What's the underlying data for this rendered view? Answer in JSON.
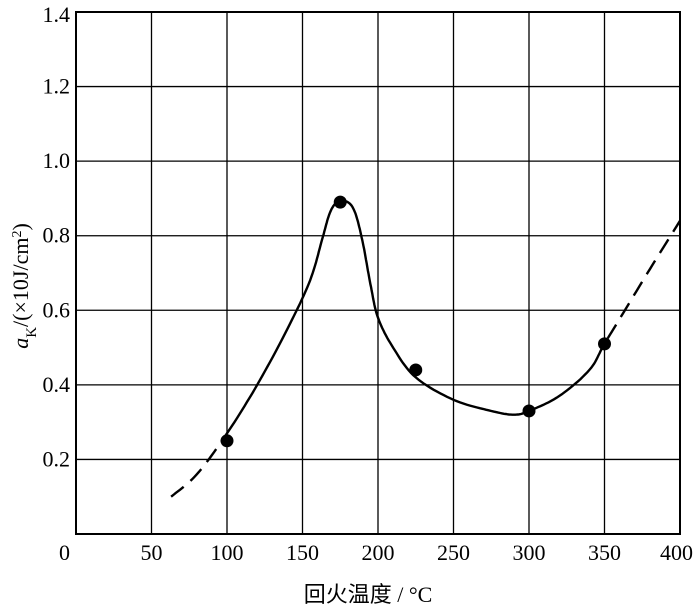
{
  "chart_data": {
    "type": "scatter",
    "xlabel": "回火温度 / °C",
    "ylabel_parts": {
      "a": "a",
      "sub": "K",
      "unit": "/(×10J/cm",
      "sup": "2",
      "close": ")"
    },
    "xlim": [
      0,
      400
    ],
    "ylim": [
      0,
      1.4
    ],
    "x_ticks": [
      "0",
      "50",
      "100",
      "150",
      "200",
      "250",
      "300",
      "350",
      "400"
    ],
    "y_ticks": [
      "0.2",
      "0.4",
      "0.6",
      "0.8",
      "1.0",
      "1.2",
      "1.4"
    ],
    "grid": true,
    "legend": "none",
    "series": [
      {
        "points": [
          {
            "x": 100,
            "y": 0.25
          },
          {
            "x": 175,
            "y": 0.89
          },
          {
            "x": 225,
            "y": 0.44
          },
          {
            "x": 300,
            "y": 0.33
          },
          {
            "x": 350,
            "y": 0.51
          }
        ],
        "fit_curve": [
          [
            63,
            0.1
          ],
          [
            80,
            0.16
          ],
          [
            100,
            0.27
          ],
          [
            120,
            0.4
          ],
          [
            140,
            0.55
          ],
          [
            155,
            0.68
          ],
          [
            163,
            0.79
          ],
          [
            168,
            0.86
          ],
          [
            173,
            0.89
          ],
          [
            180,
            0.89
          ],
          [
            185,
            0.86
          ],
          [
            190,
            0.78
          ],
          [
            195,
            0.67
          ],
          [
            200,
            0.58
          ],
          [
            210,
            0.5
          ],
          [
            225,
            0.42
          ],
          [
            250,
            0.36
          ],
          [
            275,
            0.33
          ],
          [
            290,
            0.32
          ],
          [
            300,
            0.33
          ],
          [
            320,
            0.37
          ],
          [
            340,
            0.44
          ],
          [
            350,
            0.51
          ],
          [
            365,
            0.61
          ],
          [
            380,
            0.71
          ],
          [
            400,
            0.84
          ]
        ],
        "dashed_x_ranges": [
          [
            63,
            95
          ],
          [
            352,
            400
          ]
        ]
      }
    ]
  }
}
